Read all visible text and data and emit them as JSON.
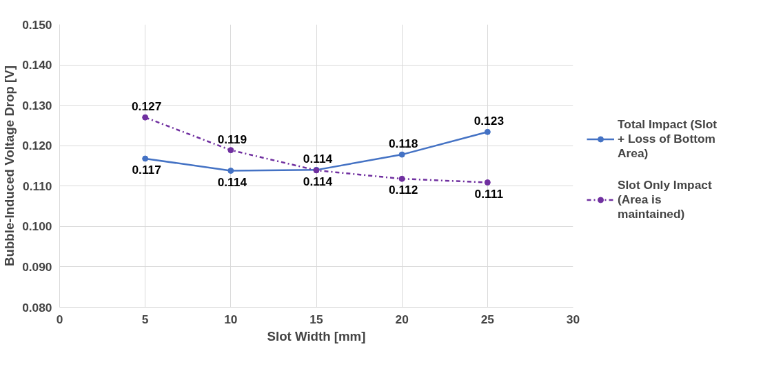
{
  "chart_data": {
    "type": "line",
    "xlabel": "Slot Width [mm]",
    "ylabel": "Bubble-Induced Voltage Drop [V]",
    "x": [
      5,
      10,
      15,
      20,
      25
    ],
    "series": [
      {
        "name": "Total Impact (Slot + Loss of Bottom Area)",
        "color": "#4472c4",
        "line_style": "solid",
        "values": [
          0.1168,
          0.1138,
          0.114,
          0.1178,
          0.1234
        ],
        "value_labels": [
          "0.117",
          "0.114",
          "0.114",
          "0.118",
          "0.123"
        ]
      },
      {
        "name": "Slot Only Impact (Area is maintained)",
        "color": "#7030a0",
        "line_style": "dashed",
        "values": [
          0.127,
          0.1189,
          0.1139,
          0.1118,
          0.1109
        ],
        "value_labels": [
          "0.127",
          "0.119",
          "0.114",
          "0.112",
          "0.111"
        ]
      }
    ],
    "xlim": [
      0,
      30
    ],
    "xticks": [
      0,
      5,
      10,
      15,
      20,
      25,
      30
    ],
    "ylim": [
      0.08,
      0.15
    ],
    "yticks": [
      {
        "value": 0.08,
        "label": "0.080"
      },
      {
        "value": 0.09,
        "label": "0.090"
      },
      {
        "value": 0.1,
        "label": "0.100"
      },
      {
        "value": 0.11,
        "label": "0.110"
      },
      {
        "value": 0.12,
        "label": "0.120"
      },
      {
        "value": 0.13,
        "label": "0.130"
      },
      {
        "value": 0.14,
        "label": "0.140"
      },
      {
        "value": 0.15,
        "label": "0.150"
      }
    ],
    "grid": true,
    "legend": "right",
    "marker": "circle"
  }
}
